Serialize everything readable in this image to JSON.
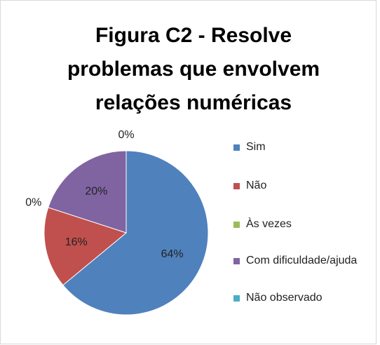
{
  "chart_data": {
    "type": "pie",
    "title": [
      "Figura C2 - Resolve",
      "problemas que envolvem",
      "relações numéricas"
    ],
    "categories": [
      "Sim",
      "Não",
      "Às vezes",
      "Com dificuldade/ajuda",
      "Não observado"
    ],
    "values": [
      64,
      16,
      0,
      20,
      0
    ],
    "value_labels": [
      "64%",
      "16%",
      "0%",
      "20%",
      "0%"
    ],
    "colors": [
      "#4f81bd",
      "#c0504d",
      "#9bbb59",
      "#8064a2",
      "#4bacc6"
    ],
    "legend": "right"
  }
}
